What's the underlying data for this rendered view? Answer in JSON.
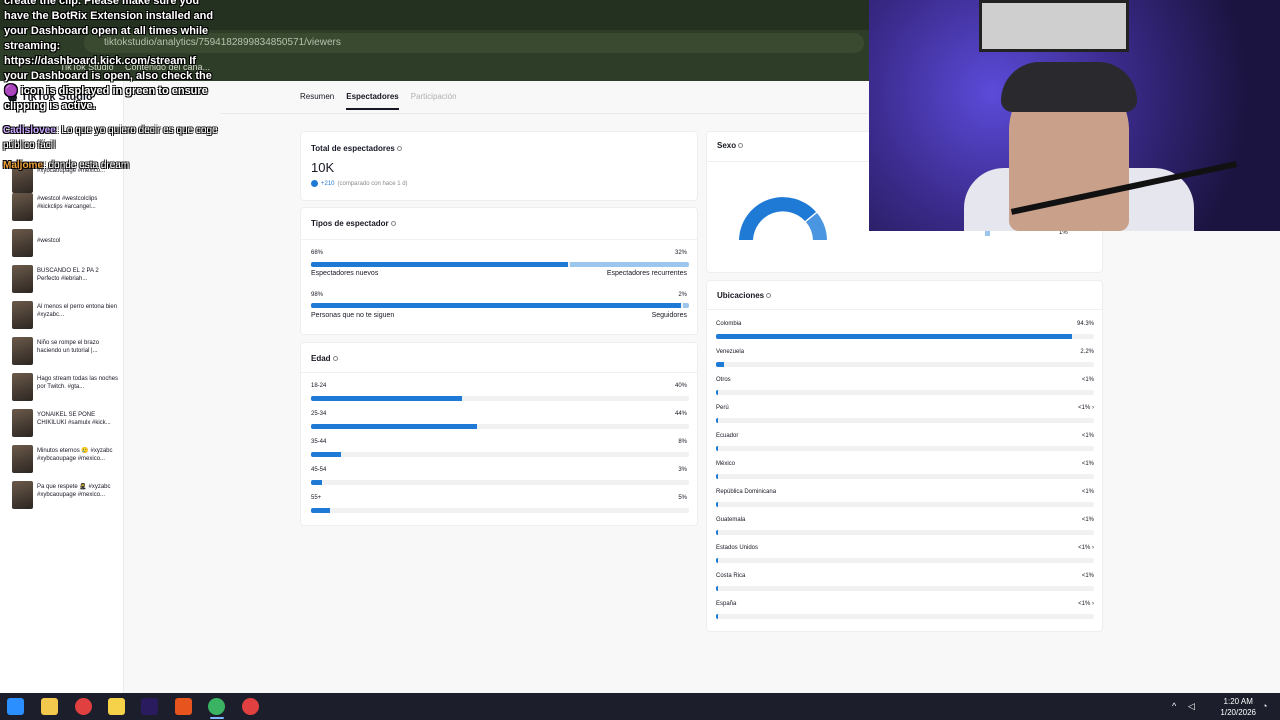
{
  "browser": {
    "url": "tiktokstudio/analytics/7594182899834850571/viewers",
    "bookmarks": [
      "TikTok Studio",
      "Contenido del cana..."
    ]
  },
  "sidebar": {
    "brand": "TikTok Studio",
    "videos": [
      {
        "caption": "#xybcaoupage #mexico..."
      },
      {
        "caption": "#westcol #westcolclips #kickclips #arcangel..."
      },
      {
        "caption": "#westcol"
      },
      {
        "caption": "BUSCANDO EL 2 PA 2 Perfecto #lebriah..."
      },
      {
        "caption": "Al menos el perro entona bien #xyzabc..."
      },
      {
        "caption": "Niño se rompe el brazo haciendo un tutorial |..."
      },
      {
        "caption": "Hago stream todas las noches por Twitch. #gta..."
      },
      {
        "caption": "YONAIKEL SE PONE CHIKILUKI #samulx #kick..."
      },
      {
        "caption": "Minutos eternos 🥲 #xyzabc #xybcaoupage #mexico..."
      },
      {
        "caption": "Pa que respete 🥷 #xyzabc #xybcaoupage #mexico..."
      }
    ]
  },
  "tabs": [
    {
      "label": "Resumen"
    },
    {
      "label": "Espectadores"
    },
    {
      "label": "Participación"
    }
  ],
  "total": {
    "title": "Total de espectadores",
    "value": "10K",
    "delta": "+210",
    "delta_note": "(comparado con hace 1 d)"
  },
  "viewer_types": {
    "title": "Tipos de espectador",
    "rows": [
      {
        "left_pct": "68%",
        "right_pct": "32%",
        "left_label": "Espectadores nuevos",
        "right_label": "Espectadores recurrentes",
        "value": 0.68
      },
      {
        "left_pct": "98%",
        "right_pct": "2%",
        "left_label": "Personas que no te siguen",
        "right_label": "Seguidores",
        "value": 0.98
      }
    ]
  },
  "age": {
    "title": "Edad",
    "rows": [
      {
        "label": "18-24",
        "pct": "40%",
        "value": 0.4
      },
      {
        "label": "25-34",
        "pct": "44%",
        "value": 0.44
      },
      {
        "label": "35-44",
        "pct": "8%",
        "value": 0.08
      },
      {
        "label": "45-54",
        "pct": "3%",
        "value": 0.03
      },
      {
        "label": "55+",
        "pct": "5%",
        "value": 0.05
      }
    ]
  },
  "gender": {
    "title": "Sexo",
    "legend_pct": "1%"
  },
  "locations": {
    "title": "Ubicaciones",
    "rows": [
      {
        "country": "Colombia",
        "pct": "94.3%",
        "value": 0.943,
        "more": ""
      },
      {
        "country": "Venezuela",
        "pct": "2.2%",
        "value": 0.022,
        "more": ""
      },
      {
        "country": "Otros",
        "pct": "<1%",
        "value": 0.005,
        "more": ""
      },
      {
        "country": "Perú",
        "pct": "<1%",
        "value": 0.004,
        "more": "›"
      },
      {
        "country": "Ecuador",
        "pct": "<1%",
        "value": 0.003,
        "more": ""
      },
      {
        "country": "México",
        "pct": "<1%",
        "value": 0.003,
        "more": ""
      },
      {
        "country": "República Dominicana",
        "pct": "<1%",
        "value": 0.002,
        "more": ""
      },
      {
        "country": "Guatemala",
        "pct": "<1%",
        "value": 0.002,
        "more": ""
      },
      {
        "country": "Estados Unidos",
        "pct": "<1%",
        "value": 0.002,
        "more": "›"
      },
      {
        "country": "Costa Rica",
        "pct": "<1%",
        "value": 0.002,
        "more": ""
      },
      {
        "country": "España",
        "pct": "<1%",
        "value": 0.002,
        "more": "›"
      }
    ]
  },
  "chat": {
    "notice": "create the clip. Please make sure you have the BotRix Extension installed and your Dashboard open at all times while streaming: https://dashboard.kick.com/stream If your Dashboard is open, also check the 🟣 icon is displayed in green to ensure clipping is active.",
    "messages": [
      {
        "user": "Cadislovee",
        "text": ": Lo que yo quiero decir es que coge público fácil"
      },
      {
        "user": "Maljome",
        "text": ": donde esta dream"
      }
    ]
  },
  "taskbar": {
    "time": "1:20 AM",
    "date": "1/20/2026"
  },
  "colors": {
    "accent": "#1f7ad6",
    "accent_light": "#9dc6ee",
    "taskbar": "#1c1f2b",
    "chrome": "#2e3d27"
  }
}
